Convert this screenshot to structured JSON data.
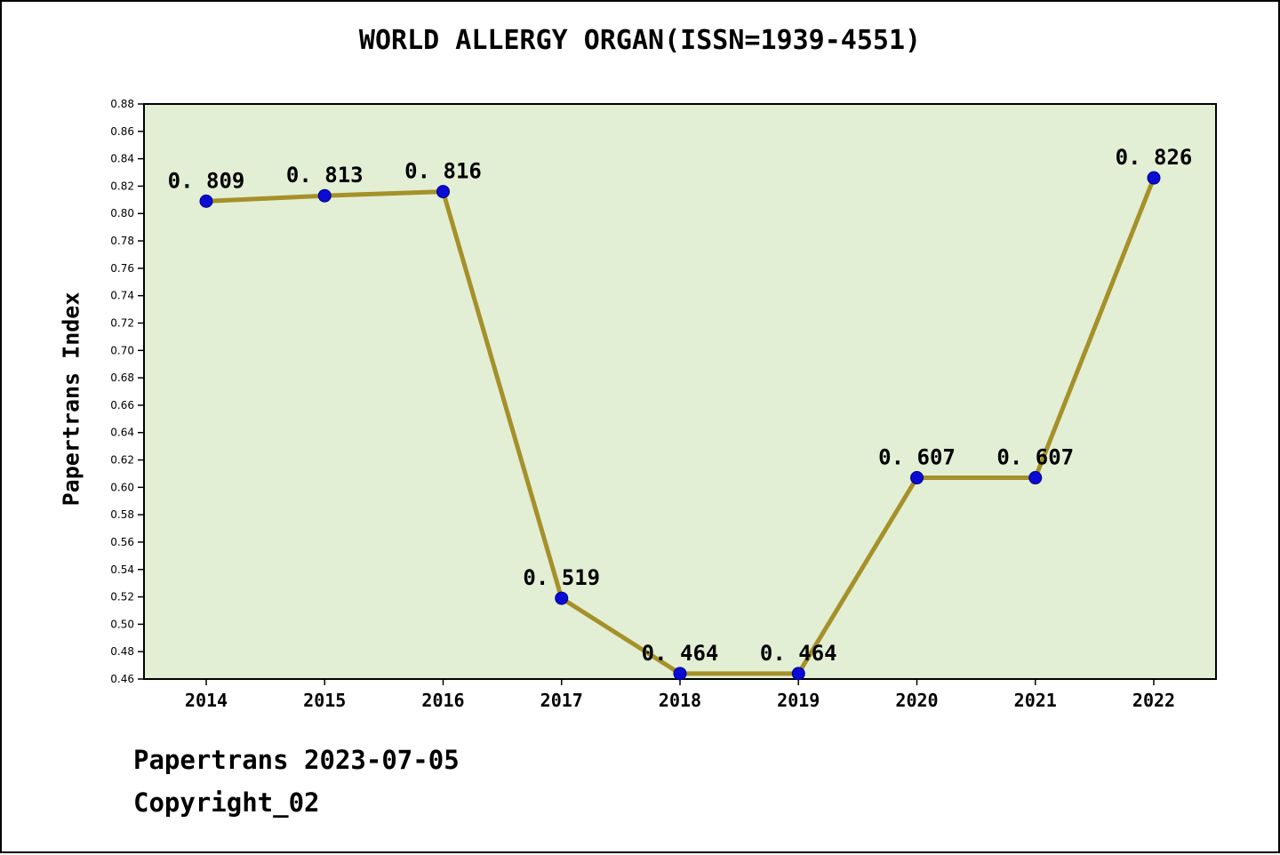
{
  "chart_data": {
    "type": "line",
    "title": "WORLD ALLERGY ORGAN(ISSN=1939-4551)",
    "ylabel": "Papertrans Index",
    "xlabel": "",
    "categories": [
      "2014",
      "2015",
      "2016",
      "2017",
      "2018",
      "2019",
      "2020",
      "2021",
      "2022"
    ],
    "values": [
      0.809,
      0.813,
      0.816,
      0.519,
      0.464,
      0.464,
      0.607,
      0.607,
      0.826
    ],
    "point_labels": [
      "0. 809",
      "0. 813",
      "0. 816",
      "0. 519",
      "0. 464",
      "0. 464",
      "0. 607",
      "0. 607",
      "0. 826"
    ],
    "ylim": [
      0.46,
      0.88
    ],
    "ytick_step": 0.02,
    "grid": false,
    "legend": "none",
    "colors": {
      "line": "#a5902a",
      "marker": "#0b0bd6",
      "marker_edge": "#000080",
      "plot_background": "#e2efd4",
      "axis": "#000000",
      "text": "#000000"
    }
  },
  "footer": {
    "line1": "Papertrans 2023-07-05",
    "line2": "Copyright_02"
  }
}
